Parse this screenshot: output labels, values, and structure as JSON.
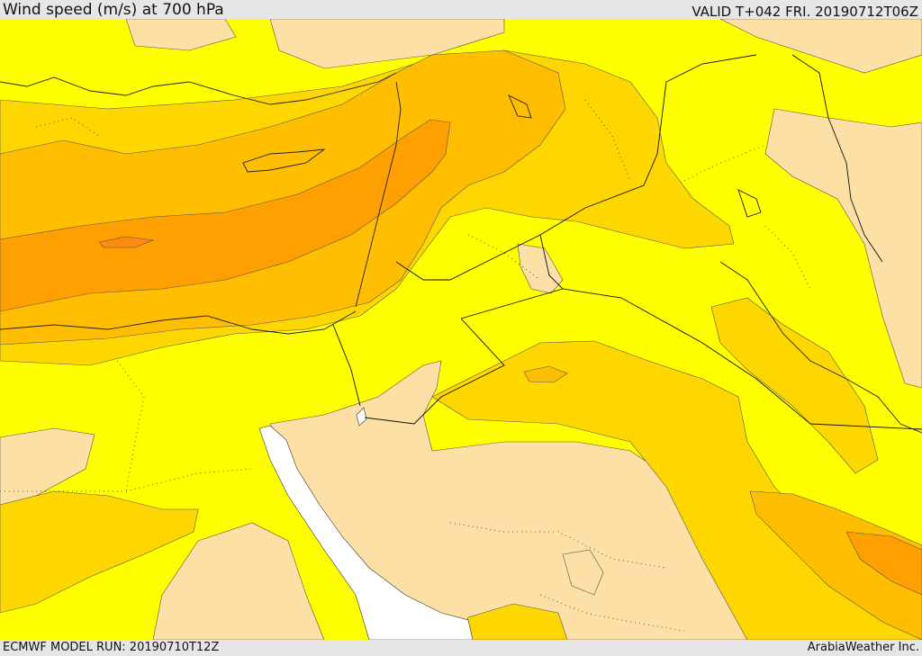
{
  "header": {
    "title": "Wind speed (m/s) at 700 hPa",
    "valid": "VALID T+042 FRI. 20190712T06Z"
  },
  "footer": {
    "model_run": "ECMWF MODEL RUN: 20190710T12Z",
    "credit": "ArabiaWeather Inc."
  },
  "map": {
    "colors": {
      "calm": "#fde0a6",
      "light": "#ffff00",
      "moderate": "#ffd700",
      "fresh": "#ffbf00",
      "strong": "#ffa000",
      "core": "#ff8a10",
      "sea": "#ffffff"
    }
  }
}
